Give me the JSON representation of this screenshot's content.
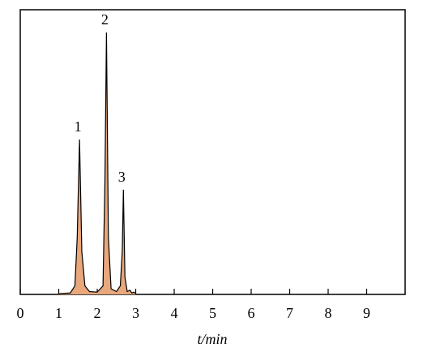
{
  "chart_data": {
    "type": "line",
    "xlabel": "t/min",
    "x": [
      1.0,
      1.3,
      1.42,
      1.48,
      1.54,
      1.6,
      1.68,
      1.8,
      2.0,
      2.15,
      2.2,
      2.24,
      2.29,
      2.36,
      2.5,
      2.6,
      2.65,
      2.68,
      2.72,
      2.78,
      2.85,
      2.9,
      2.95,
      3.0
    ],
    "series": [
      {
        "color": "#e9a77c",
        "values": [
          0.3,
          0.5,
          3,
          20,
          54.4,
          15,
          3,
          1,
          0.8,
          3,
          40,
          92,
          20,
          2,
          1,
          3,
          15,
          36.8,
          6,
          1,
          1.5,
          0.5,
          0.8,
          0.3
        ]
      }
    ],
    "peak_labels": [
      "1",
      "2",
      "3"
    ],
    "xlim": [
      0,
      10
    ],
    "xticks": [
      0,
      1,
      2,
      3,
      4,
      5,
      6,
      7,
      8,
      9
    ],
    "ylim": [
      0,
      100
    ]
  }
}
